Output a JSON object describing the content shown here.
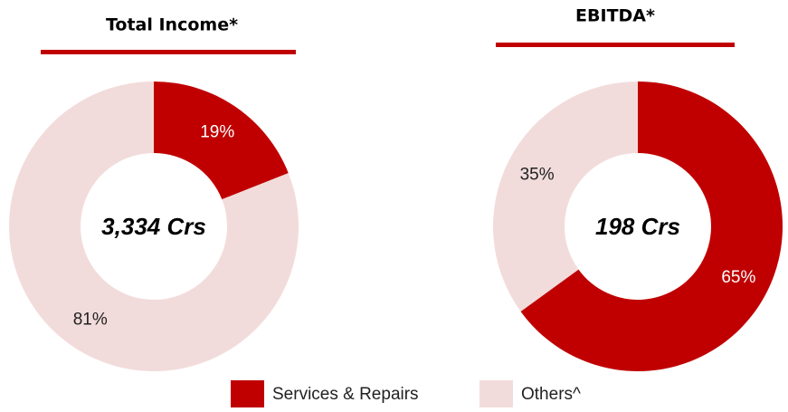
{
  "chart_data": [
    {
      "type": "pie",
      "title": "Total Income*",
      "annotation": "3,334 Crs",
      "categories": [
        "Services & Repairs",
        "Others^"
      ],
      "values": [
        19,
        81
      ],
      "value_labels": [
        "19%",
        "81%"
      ],
      "colors": [
        "#c00000",
        "#f2dcdb"
      ],
      "donut": true
    },
    {
      "type": "pie",
      "title": "EBITDA*",
      "annotation": "198 Crs",
      "categories": [
        "Services & Repairs",
        "Others^"
      ],
      "values": [
        65,
        35
      ],
      "value_labels": [
        "65%",
        "35%"
      ],
      "colors": [
        "#c00000",
        "#f2dcdb"
      ],
      "donut": true
    }
  ]
}
